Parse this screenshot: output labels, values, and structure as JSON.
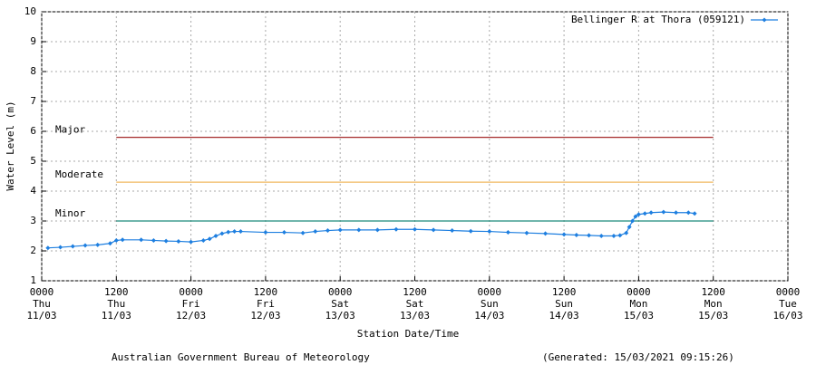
{
  "chart_data": {
    "type": "line",
    "y_label": "Water Level (m)",
    "x_label": "Station Date/Time",
    "footer_left": "Australian Government Bureau of Meteorology",
    "footer_right": "(Generated: 15/03/2021 09:15:26)",
    "ylim": [
      1,
      10
    ],
    "yticks": [
      1,
      2,
      3,
      4,
      5,
      6,
      7,
      8,
      9,
      10
    ],
    "xlim": [
      "11/03 0000",
      "16/03 0000"
    ],
    "xticks": [
      {
        "value": "11/03 0000",
        "label": "0000\nThu\n11/03"
      },
      {
        "value": "11/03 1200",
        "label": "1200\nThu\n11/03"
      },
      {
        "value": "12/03 0000",
        "label": "0000\nFri\n12/03"
      },
      {
        "value": "12/03 1200",
        "label": "1200\nFri\n12/03"
      },
      {
        "value": "13/03 0000",
        "label": "0000\nSat\n13/03"
      },
      {
        "value": "13/03 1200",
        "label": "1200\nSat\n13/03"
      },
      {
        "value": "14/03 0000",
        "label": "0000\nSun\n14/03"
      },
      {
        "value": "14/03 1200",
        "label": "1200\nSun\n14/03"
      },
      {
        "value": "15/03 0000",
        "label": "0000\nMon\n15/03"
      },
      {
        "value": "15/03 1200",
        "label": "1200\nMon\n15/03"
      },
      {
        "value": "16/03 0000",
        "label": "0000\nTue\n16/03"
      }
    ],
    "grid": true,
    "legend": "top-right",
    "thresholds": [
      {
        "label": "Major",
        "value": 5.8,
        "color": "#a52a2a",
        "start": "11/03 1200",
        "end": "15/03 1200"
      },
      {
        "label": "Moderate",
        "value": 4.3,
        "color": "#f0b860",
        "start": "11/03 1200",
        "end": "15/03 1200"
      },
      {
        "label": "Minor",
        "value": 3.0,
        "color": "#1a8a7a",
        "start": "11/03 1200",
        "end": "15/03 1200"
      }
    ],
    "series": [
      {
        "name": "Bellinger R at Thora (059121)",
        "color": "#1e7fe0",
        "x": [
          "11/03 0100",
          "11/03 0300",
          "11/03 0500",
          "11/03 0700",
          "11/03 0900",
          "11/03 1100",
          "11/03 1200",
          "11/03 1300",
          "11/03 1600",
          "11/03 1800",
          "11/03 2000",
          "11/03 2200",
          "12/03 0000",
          "12/03 0200",
          "12/03 0300",
          "12/03 0400",
          "12/03 0500",
          "12/03 0600",
          "12/03 0700",
          "12/03 0800",
          "12/03 1200",
          "12/03 1500",
          "12/03 1800",
          "12/03 2000",
          "12/03 2200",
          "13/03 0000",
          "13/03 0300",
          "13/03 0600",
          "13/03 0900",
          "13/03 1200",
          "13/03 1500",
          "13/03 1800",
          "13/03 2100",
          "14/03 0000",
          "14/03 0300",
          "14/03 0600",
          "14/03 0900",
          "14/03 1200",
          "14/03 1400",
          "14/03 1600",
          "14/03 1800",
          "14/03 2000",
          "14/03 2100",
          "14/03 2200",
          "14/03 2230",
          "14/03 2300",
          "14/03 2330",
          "15/03 0000",
          "15/03 0100",
          "15/03 0200",
          "15/03 0400",
          "15/03 0600",
          "15/03 0800",
          "15/03 0900"
        ],
        "values": [
          2.1,
          2.12,
          2.15,
          2.18,
          2.2,
          2.25,
          2.35,
          2.37,
          2.37,
          2.35,
          2.33,
          2.32,
          2.3,
          2.35,
          2.4,
          2.5,
          2.58,
          2.63,
          2.65,
          2.65,
          2.62,
          2.62,
          2.6,
          2.65,
          2.68,
          2.7,
          2.7,
          2.7,
          2.72,
          2.72,
          2.7,
          2.68,
          2.66,
          2.65,
          2.62,
          2.6,
          2.58,
          2.55,
          2.53,
          2.52,
          2.5,
          2.5,
          2.52,
          2.6,
          2.8,
          3.0,
          3.15,
          3.22,
          3.25,
          3.28,
          3.3,
          3.28,
          3.28,
          3.25
        ]
      }
    ]
  }
}
